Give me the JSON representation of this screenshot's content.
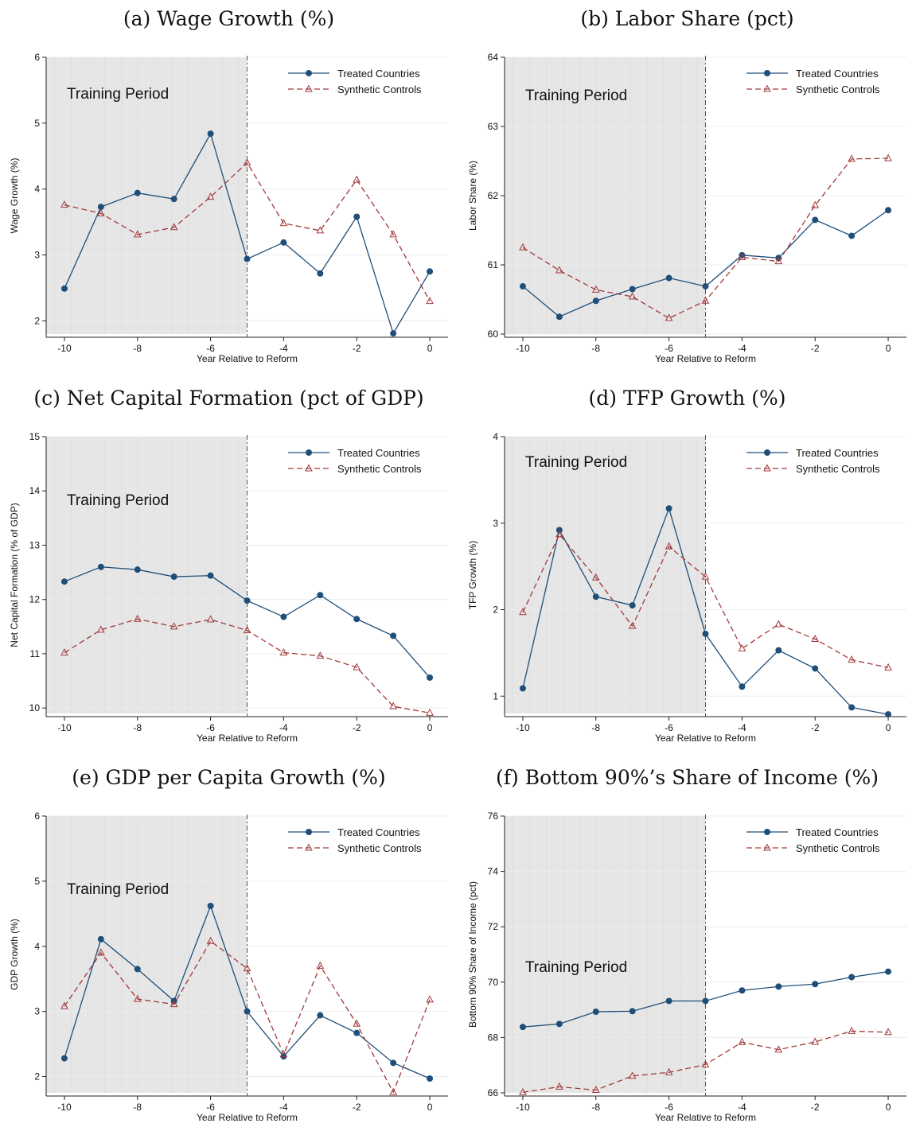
{
  "colors": {
    "treated": "#1f4e79",
    "synthetic": "#a23a3a",
    "shade": "#e6e6e6",
    "grid": "#ececec"
  },
  "legend": {
    "treated_label": "Treated Countries",
    "synthetic_label": "Synthetic Controls"
  },
  "shade_label": "Training Period",
  "chart_data": [
    {
      "type": "line",
      "title": "(a) Wage Growth (%)",
      "xlabel": "Year Relative to Reform",
      "ylabel": "Wage Growth (%)",
      "x": [
        -10,
        -9,
        -8,
        -7,
        -6,
        -5,
        -4,
        -3,
        -2,
        -1,
        0
      ],
      "xticks": [
        -10,
        -8,
        -6,
        -4,
        -2,
        0
      ],
      "yticks": [
        2,
        3,
        4,
        5,
        6
      ],
      "ylim": [
        1.8,
        6
      ],
      "xlim": [
        -10.5,
        0.5
      ],
      "training_period": [
        -10.5,
        -5
      ],
      "reform_line": -5,
      "series": [
        {
          "name": "Treated Countries",
          "values": [
            2.49,
            3.73,
            3.94,
            3.85,
            4.84,
            2.94,
            3.19,
            2.72,
            3.58,
            1.81,
            2.75
          ]
        },
        {
          "name": "Synthetic Controls",
          "values": [
            3.76,
            3.63,
            3.31,
            3.42,
            3.88,
            4.4,
            3.48,
            3.37,
            4.14,
            3.31,
            2.3
          ]
        }
      ]
    },
    {
      "type": "line",
      "title": "(b) Labor Share (pct)",
      "xlabel": "Year Relative to Reform",
      "ylabel": "Labor Share (%)",
      "x": [
        -10,
        -9,
        -8,
        -7,
        -6,
        -5,
        -4,
        -3,
        -2,
        -1,
        0
      ],
      "xticks": [
        -10,
        -8,
        -6,
        -4,
        -2,
        0
      ],
      "yticks": [
        60,
        61,
        62,
        63,
        64
      ],
      "ylim": [
        60,
        64
      ],
      "xlim": [
        -10.5,
        0.5
      ],
      "training_period": [
        -10.5,
        -5
      ],
      "reform_line": -5,
      "series": [
        {
          "name": "Treated Countries",
          "values": [
            60.69,
            60.25,
            60.48,
            60.65,
            60.81,
            60.69,
            61.14,
            61.1,
            61.65,
            61.42,
            61.79
          ]
        },
        {
          "name": "Synthetic Controls",
          "values": [
            61.25,
            60.92,
            60.64,
            60.54,
            60.23,
            60.48,
            61.11,
            61.05,
            61.86,
            62.53,
            62.54
          ]
        }
      ]
    },
    {
      "type": "line",
      "title": "(c) Net Capital Formation (pct of GDP)",
      "xlabel": "Year Relative to Reform",
      "ylabel": "Net Capital Formation (% of GDP)",
      "x": [
        -10,
        -9,
        -8,
        -7,
        -6,
        -5,
        -4,
        -3,
        -2,
        -1,
        0
      ],
      "xticks": [
        -10,
        -8,
        -6,
        -4,
        -2,
        0
      ],
      "yticks": [
        10,
        11,
        12,
        13,
        14,
        15
      ],
      "ylim": [
        9.9,
        15
      ],
      "xlim": [
        -10.5,
        0.5
      ],
      "training_period": [
        -10.5,
        -5
      ],
      "reform_line": -5,
      "series": [
        {
          "name": "Treated Countries",
          "values": [
            12.33,
            12.6,
            12.55,
            12.42,
            12.44,
            11.98,
            11.68,
            12.08,
            11.64,
            11.33,
            10.56
          ]
        },
        {
          "name": "Synthetic Controls",
          "values": [
            11.02,
            11.44,
            11.64,
            11.5,
            11.63,
            11.43,
            11.02,
            10.96,
            10.75,
            10.03,
            9.91
          ]
        }
      ]
    },
    {
      "type": "line",
      "title": "(d) TFP Growth (%)",
      "xlabel": "Year Relative to Reform",
      "ylabel": "TFP Growth (%)",
      "x": [
        -10,
        -9,
        -8,
        -7,
        -6,
        -5,
        -4,
        -3,
        -2,
        -1,
        0
      ],
      "xticks": [
        -10,
        -8,
        -6,
        -4,
        -2,
        0
      ],
      "yticks": [
        1,
        2,
        3,
        4
      ],
      "ylim": [
        0.8,
        4
      ],
      "xlim": [
        -10.5,
        0.5
      ],
      "training_period": [
        -10.5,
        -5
      ],
      "reform_line": -5,
      "series": [
        {
          "name": "Treated Countries",
          "values": [
            1.09,
            2.92,
            2.15,
            2.05,
            3.17,
            1.72,
            1.11,
            1.53,
            1.32,
            0.87,
            0.79
          ]
        },
        {
          "name": "Synthetic Controls",
          "values": [
            1.97,
            2.87,
            2.37,
            1.81,
            2.73,
            2.38,
            1.55,
            1.83,
            1.66,
            1.42,
            1.33
          ]
        }
      ]
    },
    {
      "type": "line",
      "title": "(e) GDP per Capita Growth (%)",
      "xlabel": "Year Relative to Reform",
      "ylabel": "GDP Growth (%)",
      "x": [
        -10,
        -9,
        -8,
        -7,
        -6,
        -5,
        -4,
        -3,
        -2,
        -1,
        0
      ],
      "xticks": [
        -10,
        -8,
        -6,
        -4,
        -2,
        0
      ],
      "yticks": [
        2,
        3,
        4,
        5,
        6
      ],
      "ylim": [
        1.75,
        6
      ],
      "xlim": [
        -10.5,
        0.5
      ],
      "training_period": [
        -10.5,
        -5
      ],
      "reform_line": -5,
      "series": [
        {
          "name": "Treated Countries",
          "values": [
            2.28,
            4.11,
            3.65,
            3.16,
            4.62,
            3.0,
            2.31,
            2.94,
            2.67,
            2.21,
            1.97
          ]
        },
        {
          "name": "Synthetic Controls",
          "values": [
            3.08,
            3.9,
            3.19,
            3.11,
            4.08,
            3.66,
            2.34,
            3.7,
            2.81,
            1.76,
            3.18
          ]
        }
      ]
    },
    {
      "type": "line",
      "title": "(f) Bottom 90%’s Share of Income (%)",
      "xlabel": "Year Relative to Reform",
      "ylabel": "Bottom 90% Share of Income (pct)",
      "x": [
        -10,
        -9,
        -8,
        -7,
        -6,
        -5,
        -4,
        -3,
        -2,
        -1,
        0
      ],
      "xticks": [
        -10,
        -8,
        -6,
        -4,
        -2,
        0
      ],
      "yticks": [
        66,
        68,
        70,
        72,
        74,
        76
      ],
      "ylim": [
        66,
        76
      ],
      "xlim": [
        -10.5,
        0.5
      ],
      "training_period": [
        -10.5,
        -5
      ],
      "reform_line": -5,
      "series": [
        {
          "name": "Treated Countries",
          "values": [
            68.38,
            68.49,
            68.93,
            68.95,
            69.32,
            69.32,
            69.7,
            69.84,
            69.93,
            70.18,
            70.38
          ]
        },
        {
          "name": "Synthetic Controls",
          "values": [
            66.02,
            66.22,
            66.1,
            66.61,
            66.74,
            67.02,
            67.83,
            67.56,
            67.84,
            68.23,
            68.19
          ]
        }
      ]
    }
  ]
}
